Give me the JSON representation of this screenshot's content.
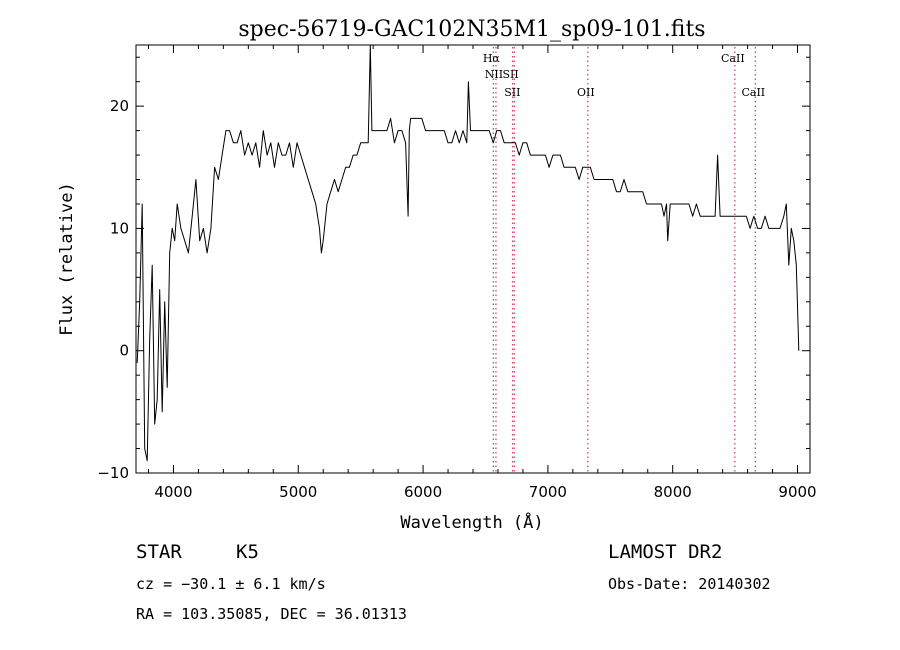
{
  "chart_data": {
    "type": "line",
    "title": "spec-56719-GAC102N35M1_sp09-101.fits",
    "xlabel": "Wavelength (Å)",
    "ylabel": "Flux (relative)",
    "xlim": [
      3700,
      9100
    ],
    "ylim": [
      -10,
      25
    ],
    "x_ticks": [
      4000,
      5000,
      6000,
      7000,
      8000,
      9000
    ],
    "x_tick_labels": [
      "4000",
      "5000",
      "6000",
      "7000",
      "8000",
      "9000"
    ],
    "y_ticks": [
      -10,
      0,
      10,
      20
    ],
    "y_tick_labels": [
      "−10",
      "0",
      "10",
      "20"
    ],
    "grid": false,
    "series": [
      {
        "x": [
          3710,
          3730,
          3750,
          3770,
          3790,
          3810,
          3830,
          3850,
          3870,
          3890,
          3910,
          3930,
          3950,
          3970,
          3990,
          4010,
          4030,
          4060,
          4090,
          4120,
          4150,
          4180,
          4210,
          4240,
          4270,
          4300,
          4330,
          4360,
          4390,
          4420,
          4450,
          4480,
          4510,
          4540,
          4570,
          4600,
          4630,
          4660,
          4690,
          4720,
          4750,
          4780,
          4810,
          4840,
          4870,
          4900,
          4930,
          4960,
          4990,
          5020,
          5050,
          5080,
          5110,
          5140,
          5170,
          5185,
          5200,
          5230,
          5260,
          5290,
          5320,
          5350,
          5380,
          5410,
          5440,
          5470,
          5500,
          5530,
          5560,
          5577,
          5590,
          5620,
          5650,
          5680,
          5710,
          5740,
          5770,
          5800,
          5830,
          5860,
          5880,
          5890,
          5900,
          5930,
          5960,
          5990,
          6020,
          6050,
          6080,
          6110,
          6140,
          6170,
          6200,
          6230,
          6260,
          6290,
          6320,
          6350,
          6363,
          6380,
          6410,
          6440,
          6470,
          6500,
          6530,
          6563,
          6590,
          6620,
          6650,
          6680,
          6710,
          6740,
          6770,
          6800,
          6830,
          6860,
          6890,
          6920,
          6950,
          6980,
          7010,
          7040,
          7070,
          7100,
          7130,
          7160,
          7190,
          7220,
          7250,
          7280,
          7310,
          7340,
          7370,
          7400,
          7430,
          7460,
          7490,
          7520,
          7550,
          7580,
          7610,
          7640,
          7670,
          7700,
          7730,
          7760,
          7790,
          7820,
          7850,
          7880,
          7910,
          7930,
          7950,
          7960,
          7980,
          8010,
          8040,
          8070,
          8100,
          8130,
          8160,
          8190,
          8220,
          8250,
          8280,
          8310,
          8340,
          8360,
          8380,
          8410,
          8440,
          8470,
          8500,
          8530,
          8560,
          8590,
          8620,
          8650,
          8680,
          8710,
          8740,
          8770,
          8800,
          8830,
          8860,
          8890,
          8910,
          8930,
          8950,
          8970,
          8990,
          9010
        ],
        "y": [
          -1,
          4,
          12,
          -8,
          -9,
          1,
          7,
          -6,
          -4,
          5,
          -5,
          4,
          -3,
          8,
          10,
          9,
          12,
          10,
          9,
          8,
          11,
          14,
          9,
          10,
          8,
          10,
          15,
          14,
          16,
          18,
          18,
          17,
          17,
          18,
          16,
          17,
          16,
          17,
          15,
          18,
          16,
          17,
          15,
          17,
          16,
          16,
          17,
          15,
          17,
          16,
          15,
          14,
          13,
          12,
          10,
          8,
          9,
          12,
          13,
          14,
          13,
          14,
          15,
          15,
          16,
          16,
          17,
          17,
          17,
          25,
          18,
          18,
          18,
          18,
          18,
          19,
          17,
          18,
          18,
          17,
          11,
          18,
          19,
          19,
          19,
          19,
          18,
          18,
          18,
          18,
          18,
          18,
          17,
          17,
          18,
          17,
          18,
          17,
          22,
          18,
          18,
          18,
          18,
          18,
          18,
          17,
          18,
          18,
          17,
          17,
          17,
          17,
          16,
          17,
          17,
          16,
          16,
          16,
          16,
          16,
          15,
          16,
          16,
          16,
          15,
          15,
          15,
          15,
          14,
          15,
          15,
          15,
          14,
          14,
          14,
          14,
          14,
          14,
          13,
          13,
          14,
          13,
          13,
          13,
          13,
          13,
          12,
          12,
          12,
          12,
          12,
          11,
          12,
          9,
          12,
          12,
          12,
          12,
          12,
          12,
          11,
          12,
          11,
          11,
          11,
          11,
          11,
          16,
          11,
          11,
          11,
          11,
          11,
          11,
          11,
          11,
          10,
          11,
          10,
          10,
          11,
          10,
          10,
          10,
          10,
          11,
          12,
          7,
          10,
          9,
          7,
          0
        ]
      }
    ],
    "line_markers": [
      {
        "label": "Hα",
        "x": 6563,
        "row": 0
      },
      {
        "label": "NII",
        "x": 6584,
        "row": 1
      },
      {
        "label": "SII",
        "x": 6717,
        "row": 1
      },
      {
        "label": "SII",
        "x": 6731,
        "row": 2
      },
      {
        "label": "OII",
        "x": 7320,
        "row": 2
      },
      {
        "label": "CaII",
        "x": 8498,
        "row": 0
      },
      {
        "label": "CaII",
        "x": 8662,
        "row": 2
      }
    ],
    "marker_lines_x": [
      6563,
      6584,
      6717,
      6731,
      7320,
      8498,
      8662
    ],
    "colors": {
      "spectrum": "#000000",
      "markers": "#d4476b",
      "axes": "#000000"
    }
  },
  "info": {
    "object_type": "STAR",
    "subclass": "K5",
    "cz": "cz = −30.1 ± 6.1 km/s",
    "radec": "RA = 103.35085, DEC =  36.01313",
    "survey": "LAMOST DR2",
    "obs_date": "Obs-Date: 20140302"
  }
}
